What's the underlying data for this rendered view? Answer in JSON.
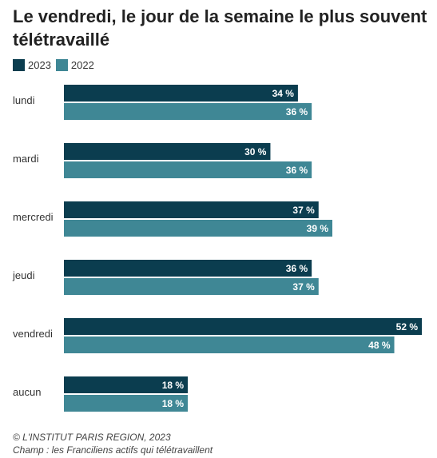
{
  "title": "Le vendredi, le jour de la semaine le plus souvent télétravaillé",
  "colors": {
    "s2023": "#0b3d4f",
    "s2022": "#3f8795"
  },
  "footer": {
    "credit": "© L'INSTITUT PARIS REGION, 2023",
    "scope": "Champ : les Franciliens actifs qui télétravaillent"
  },
  "chart_data": {
    "type": "bar",
    "orientation": "horizontal",
    "title": "Le vendredi, le jour de la semaine le plus souvent télétravaillé",
    "xlim": [
      0,
      52
    ],
    "unit": "%",
    "legend_position": "top-left",
    "grid": false,
    "categories": [
      "lundi",
      "mardi",
      "mercredi",
      "jeudi",
      "vendredi",
      "aucun"
    ],
    "series": [
      {
        "name": "2023",
        "values": [
          34,
          30,
          37,
          36,
          52,
          18
        ]
      },
      {
        "name": "2022",
        "values": [
          36,
          36,
          39,
          37,
          48,
          18
        ]
      }
    ]
  }
}
